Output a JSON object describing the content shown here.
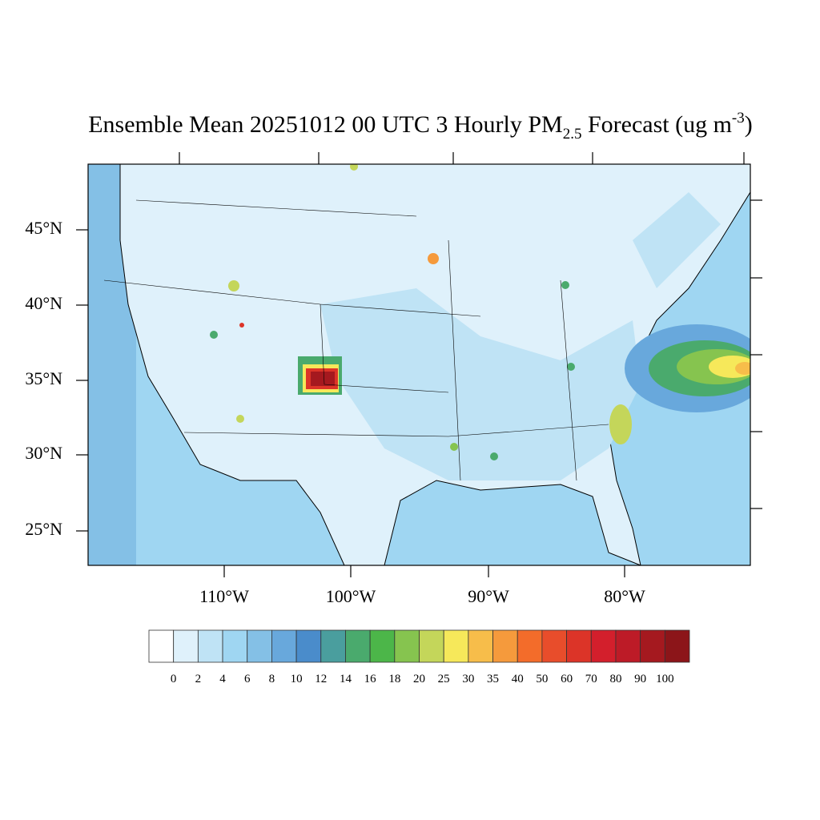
{
  "title": {
    "main": "Ensemble Mean 20251012 00 UTC 3 Hourly PM",
    "subscript": "2.5",
    "middle": " Forecast (ug m",
    "superscript": "-3",
    "end": ")"
  },
  "latitude_labels": [
    "45°N",
    "40°N",
    "35°N",
    "30°N",
    "25°N"
  ],
  "longitude_labels": [
    "110°W",
    "100°W",
    "90°W",
    "80°W"
  ],
  "colorbar": {
    "levels": [
      0,
      2,
      4,
      6,
      8,
      10,
      12,
      14,
      16,
      18,
      20,
      25,
      30,
      35,
      40,
      50,
      60,
      70,
      80,
      90,
      100
    ],
    "colors": [
      "#ffffff",
      "#dff1fb",
      "#bfe3f5",
      "#9fd6f2",
      "#84c0e6",
      "#68a8dc",
      "#4a8ccb",
      "#4a9e9e",
      "#4aaa6d",
      "#4cb649",
      "#86c44f",
      "#c4d65a",
      "#f6e85a",
      "#f7bd4a",
      "#f59a3c",
      "#f36c2a",
      "#e84d2b",
      "#dc3428",
      "#d31f2c",
      "#bd1b27",
      "#a5191f",
      "#8c1519"
    ]
  }
}
